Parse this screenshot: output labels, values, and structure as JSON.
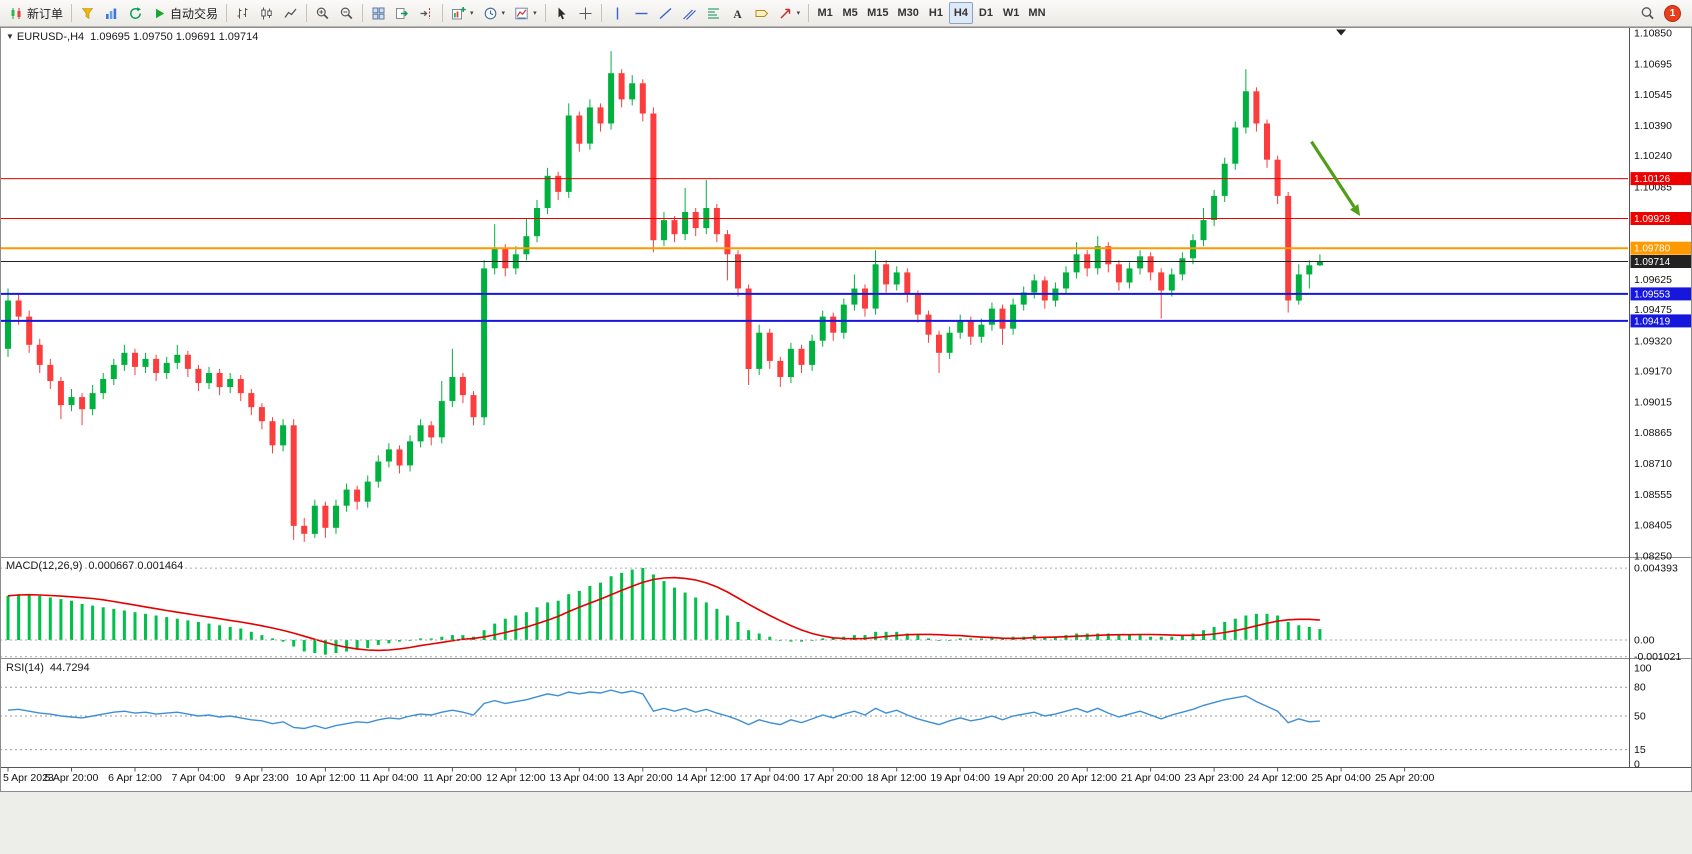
{
  "toolbar": {
    "new_order_label": "新订单",
    "auto_trading_label": "自动交易",
    "timeframes": [
      "M1",
      "M5",
      "M15",
      "M30",
      "H1",
      "H4",
      "D1",
      "W1",
      "MN"
    ],
    "active_timeframe": "H4",
    "notification_count": "1"
  },
  "header": {
    "symbol_period": "EURUSD-,H4",
    "ohlc_text": "1.09695 1.09750 1.09691 1.09714"
  },
  "indicators": {
    "macd_name": "MACD(12,26,9)",
    "macd_values": "0.000667 0.001464",
    "rsi_name": "RSI(14)",
    "rsi_value": "44.7294"
  },
  "colors": {
    "bull": "#00b140",
    "bear": "#fb3d3d",
    "macd_bar": "#00c24a",
    "macd_signal": "#e50000",
    "rsi_line": "#3e8fd8",
    "arrow": "#4f9f18",
    "axis_text": "#111111",
    "separator": "#8c8c8c"
  },
  "chart_data": {
    "type": "candlestick",
    "symbol": "EURUSD-",
    "period": "H4",
    "current_bar": {
      "open": "1.09695",
      "high": "1.09750",
      "low": "1.09691",
      "close": "1.09714"
    },
    "price_axis": {
      "min": 1.0825,
      "max": 1.1085,
      "tick_labels": [
        "1.10850",
        "1.10695",
        "1.10545",
        "1.10390",
        "1.10240",
        "1.10085",
        "1.09935",
        "1.09780",
        "1.09625",
        "1.09475",
        "1.09320",
        "1.09170",
        "1.09015",
        "1.08865",
        "1.08710",
        "1.08555",
        "1.08405",
        "1.08250"
      ]
    },
    "time_labels": [
      "5 Apr 2023",
      "5 Apr 20:00",
      "6 Apr 12:00",
      "7 Apr 04:00",
      "9 Apr 23:00",
      "10 Apr 12:00",
      "11 Apr 04:00",
      "11 Apr 20:00",
      "12 Apr 12:00",
      "13 Apr 04:00",
      "13 Apr 20:00",
      "14 Apr 12:00",
      "17 Apr 04:00",
      "17 Apr 20:00",
      "18 Apr 12:00",
      "19 Apr 04:00",
      "19 Apr 20:00",
      "20 Apr 12:00",
      "21 Apr 04:00",
      "23 Apr 23:00",
      "24 Apr 12:00",
      "25 Apr 04:00",
      "25 Apr 20:00"
    ],
    "price_lines": [
      {
        "price": 1.10126,
        "label": "1.10126",
        "color": "#ee0000",
        "width": 1
      },
      {
        "price": 1.09928,
        "label": "1.09928",
        "color": "#ee0000",
        "width": 1
      },
      {
        "price": 1.0978,
        "label": "1.09780",
        "color": "#ff9900",
        "width": 2
      },
      {
        "price": 1.09714,
        "label": "1.09714",
        "color": "#222222",
        "width": 1,
        "bid": true
      },
      {
        "price": 1.09553,
        "label": "1.09553",
        "color": "#1616dd",
        "width": 2
      },
      {
        "price": 1.09419,
        "label": "1.09419",
        "color": "#1616dd",
        "width": 2
      }
    ],
    "arrow": {
      "from_slot": 123.2,
      "from_price": 1.1031,
      "to_slot": 127.8,
      "to_price": 1.0994
    },
    "shift_marker_slot": 126,
    "candles": [
      [
        1.0928,
        1.0958,
        1.0924,
        1.0952
      ],
      [
        1.0952,
        1.0955,
        1.094,
        1.0944
      ],
      [
        1.0944,
        1.0947,
        1.0926,
        1.093
      ],
      [
        1.093,
        1.0933,
        1.0916,
        1.092
      ],
      [
        1.092,
        1.0923,
        1.0908,
        1.0912
      ],
      [
        1.0912,
        1.0914,
        1.0893,
        1.09
      ],
      [
        1.09,
        1.0908,
        1.0897,
        1.0904
      ],
      [
        1.0904,
        1.0906,
        1.089,
        1.0898
      ],
      [
        1.0898,
        1.091,
        1.0895,
        1.0906
      ],
      [
        1.0906,
        1.0916,
        1.0903,
        1.0913
      ],
      [
        1.0913,
        1.0923,
        1.091,
        1.092
      ],
      [
        1.092,
        1.093,
        1.0917,
        1.0926
      ],
      [
        1.0926,
        1.0928,
        1.0915,
        1.0919
      ],
      [
        1.0919,
        1.0926,
        1.0916,
        1.0923
      ],
      [
        1.0923,
        1.0925,
        1.0912,
        1.0916
      ],
      [
        1.0916,
        1.0924,
        1.0913,
        1.0921
      ],
      [
        1.0921,
        1.093,
        1.0918,
        1.0925
      ],
      [
        1.0925,
        1.0927,
        1.0914,
        1.0918
      ],
      [
        1.0918,
        1.092,
        1.0907,
        1.0911
      ],
      [
        1.0911,
        1.0919,
        1.0908,
        1.0916
      ],
      [
        1.0916,
        1.0918,
        1.0905,
        1.0909
      ],
      [
        1.0909,
        1.0916,
        1.0906,
        1.0913
      ],
      [
        1.0913,
        1.0915,
        1.0902,
        1.0906
      ],
      [
        1.0906,
        1.0908,
        1.0895,
        1.0899
      ],
      [
        1.0899,
        1.0901,
        1.0888,
        1.0892
      ],
      [
        1.0892,
        1.0894,
        1.0876,
        1.088
      ],
      [
        1.088,
        1.0893,
        1.0877,
        1.089
      ],
      [
        1.089,
        1.0893,
        1.0833,
        1.084
      ],
      [
        1.084,
        1.0844,
        1.0832,
        1.0836
      ],
      [
        1.0836,
        1.0853,
        1.0834,
        1.085
      ],
      [
        1.085,
        1.0852,
        1.0834,
        1.0839
      ],
      [
        1.0839,
        1.0853,
        1.0836,
        1.085
      ],
      [
        1.085,
        1.0861,
        1.0847,
        1.0858
      ],
      [
        1.0858,
        1.086,
        1.0848,
        1.0852
      ],
      [
        1.0852,
        1.0865,
        1.0849,
        1.0862
      ],
      [
        1.0862,
        1.0875,
        1.0859,
        1.0872
      ],
      [
        1.0872,
        1.0881,
        1.0869,
        1.0878
      ],
      [
        1.0878,
        1.088,
        1.0866,
        1.087
      ],
      [
        1.087,
        1.0885,
        1.0867,
        1.0882
      ],
      [
        1.0882,
        1.0893,
        1.0879,
        1.089
      ],
      [
        1.089,
        1.0892,
        1.088,
        1.0884
      ],
      [
        1.0884,
        1.0912,
        1.0881,
        1.0902
      ],
      [
        1.0902,
        1.0928,
        1.0899,
        1.0914
      ],
      [
        1.0914,
        1.0916,
        1.0901,
        1.0905
      ],
      [
        1.0905,
        1.0907,
        1.089,
        1.0894
      ],
      [
        1.0894,
        1.0972,
        1.089,
        1.0968
      ],
      [
        1.0968,
        1.099,
        1.0965,
        1.0978
      ],
      [
        1.0978,
        1.098,
        1.0964,
        1.0968
      ],
      [
        1.0968,
        1.0979,
        1.0965,
        1.0975
      ],
      [
        1.0975,
        1.0993,
        1.0972,
        1.0984
      ],
      [
        1.0984,
        1.1002,
        1.0981,
        1.0998
      ],
      [
        1.0998,
        1.1018,
        1.0995,
        1.1014
      ],
      [
        1.1014,
        1.1016,
        1.1002,
        1.1006
      ],
      [
        1.1006,
        1.105,
        1.1003,
        1.1044
      ],
      [
        1.1044,
        1.1046,
        1.1026,
        1.103
      ],
      [
        1.103,
        1.1052,
        1.1027,
        1.1048
      ],
      [
        1.1048,
        1.105,
        1.1036,
        1.104
      ],
      [
        1.104,
        1.1076,
        1.1037,
        1.1065
      ],
      [
        1.1065,
        1.1067,
        1.1048,
        1.1052
      ],
      [
        1.1052,
        1.1064,
        1.1049,
        1.106
      ],
      [
        1.106,
        1.1062,
        1.1041,
        1.1045
      ],
      [
        1.1045,
        1.1048,
        1.0976,
        1.0982
      ],
      [
        1.0982,
        1.0996,
        1.0979,
        1.0992
      ],
      [
        1.0992,
        1.0994,
        1.0981,
        1.0985
      ],
      [
        1.0985,
        1.1008,
        1.0982,
        1.0996
      ],
      [
        1.0996,
        1.0998,
        1.0984,
        1.0988
      ],
      [
        1.0988,
        1.1012,
        1.0985,
        1.0998
      ],
      [
        1.0998,
        1.1,
        1.0981,
        1.0985
      ],
      [
        1.0985,
        1.0987,
        1.0962,
        1.0975
      ],
      [
        1.0975,
        1.0977,
        1.0954,
        1.0958
      ],
      [
        1.0958,
        1.096,
        1.091,
        1.0918
      ],
      [
        1.0918,
        1.094,
        1.0915,
        1.0936
      ],
      [
        1.0936,
        1.0938,
        1.0918,
        1.0922
      ],
      [
        1.0922,
        1.0924,
        1.0909,
        1.0914
      ],
      [
        1.0914,
        1.0931,
        1.0911,
        1.0928
      ],
      [
        1.0928,
        1.093,
        1.0916,
        1.092
      ],
      [
        1.092,
        1.0935,
        1.0917,
        1.0932
      ],
      [
        1.0932,
        1.0947,
        1.0929,
        1.0944
      ],
      [
        1.0944,
        1.0946,
        1.0932,
        1.0936
      ],
      [
        1.0936,
        1.0953,
        1.0933,
        1.095
      ],
      [
        1.095,
        1.0965,
        1.0947,
        1.0958
      ],
      [
        1.0958,
        1.096,
        1.0944,
        1.0948
      ],
      [
        1.0948,
        1.0977,
        1.0945,
        1.097
      ],
      [
        1.097,
        1.0972,
        1.0956,
        1.096
      ],
      [
        1.096,
        1.0969,
        1.0957,
        1.0966
      ],
      [
        1.0966,
        1.0968,
        1.0951,
        1.0955
      ],
      [
        1.0955,
        1.0957,
        1.0941,
        1.0945
      ],
      [
        1.0945,
        1.0947,
        1.0931,
        1.0935
      ],
      [
        1.0935,
        1.0937,
        1.0916,
        1.0926
      ],
      [
        1.0926,
        1.0939,
        1.0923,
        1.0936
      ],
      [
        1.0936,
        1.0945,
        1.0933,
        1.0942
      ],
      [
        1.0942,
        1.0944,
        1.093,
        1.0934
      ],
      [
        1.0934,
        1.0943,
        1.0931,
        1.094
      ],
      [
        1.094,
        1.0951,
        1.0937,
        1.0948
      ],
      [
        1.0948,
        1.095,
        1.093,
        1.0938
      ],
      [
        1.0938,
        1.0953,
        1.0935,
        1.095
      ],
      [
        1.095,
        1.0959,
        1.0947,
        1.0956
      ],
      [
        1.0956,
        1.0965,
        1.0953,
        1.0962
      ],
      [
        1.0962,
        1.0964,
        1.0948,
        1.0952
      ],
      [
        1.0952,
        1.0961,
        1.0949,
        1.0958
      ],
      [
        1.0958,
        1.0969,
        1.0955,
        1.0966
      ],
      [
        1.0966,
        1.0981,
        1.0963,
        1.0975
      ],
      [
        1.0975,
        1.0977,
        1.0964,
        1.0968
      ],
      [
        1.0968,
        1.0984,
        1.0965,
        1.0979
      ],
      [
        1.0979,
        1.0981,
        1.0966,
        1.097
      ],
      [
        1.097,
        1.0972,
        1.0957,
        1.0961
      ],
      [
        1.0961,
        1.0971,
        1.0958,
        1.0968
      ],
      [
        1.0968,
        1.0977,
        1.0965,
        1.0974
      ],
      [
        1.0974,
        1.0976,
        1.0962,
        1.0966
      ],
      [
        1.0966,
        1.0968,
        1.0943,
        1.0957
      ],
      [
        1.0957,
        1.0968,
        1.0954,
        1.0965
      ],
      [
        1.0965,
        1.0976,
        1.0962,
        1.0973
      ],
      [
        1.0973,
        1.0985,
        1.097,
        1.0982
      ],
      [
        1.0982,
        1.0998,
        1.0979,
        1.0992
      ],
      [
        1.0992,
        1.1007,
        1.0989,
        1.1004
      ],
      [
        1.1004,
        1.1023,
        1.1001,
        1.102
      ],
      [
        1.102,
        1.1041,
        1.1017,
        1.1038
      ],
      [
        1.1038,
        1.1067,
        1.1035,
        1.1056
      ],
      [
        1.1056,
        1.1058,
        1.1036,
        1.104
      ],
      [
        1.104,
        1.1042,
        1.1018,
        1.1022
      ],
      [
        1.1022,
        1.1024,
        1.1,
        1.1004
      ],
      [
        1.1004,
        1.1006,
        1.0946,
        1.0952
      ],
      [
        1.0952,
        1.097,
        1.095,
        1.0965
      ],
      [
        1.0965,
        1.0972,
        1.0958,
        1.09695
      ],
      [
        1.09695,
        1.0975,
        1.09691,
        1.09714
      ]
    ],
    "macd": {
      "name": "MACD(12,26,9)",
      "values_text": "0.000667 0.001464",
      "signal_period": 9,
      "axis": [
        {
          "v": 0.004393,
          "label": "0.004393"
        },
        {
          "v": 0,
          "label": "0.00"
        },
        {
          "v": -0.001021,
          "label": "-0.001021"
        }
      ],
      "bars": [
        0.0027,
        0.0028,
        0.0028,
        0.0027,
        0.0026,
        0.0025,
        0.0024,
        0.0022,
        0.0021,
        0.002,
        0.0019,
        0.0018,
        0.0017,
        0.0016,
        0.0015,
        0.0014,
        0.0013,
        0.0012,
        0.0011,
        0.001,
        0.0009,
        0.0008,
        0.0007,
        0.0005,
        0.0003,
        0.0001,
        -0.0001,
        -0.0004,
        -0.0007,
        -0.0008,
        -0.0009,
        -0.0008,
        -0.0007,
        -0.0006,
        -0.0005,
        -0.0003,
        -0.0002,
        -0.0001,
        0.0,
        0.0001,
        0.0001,
        0.0002,
        0.0003,
        0.0003,
        0.0002,
        0.0006,
        0.001,
        0.0013,
        0.0015,
        0.0017,
        0.002,
        0.0023,
        0.0024,
        0.0028,
        0.003,
        0.0033,
        0.0035,
        0.0039,
        0.0041,
        0.0043,
        0.0044,
        0.004,
        0.0036,
        0.0032,
        0.0029,
        0.0026,
        0.0023,
        0.0019,
        0.0015,
        0.0011,
        0.0006,
        0.0004,
        0.0002,
        0.0,
        -0.0001,
        -0.0001,
        0.0,
        0.0001,
        0.0001,
        0.0002,
        0.0003,
        0.0003,
        0.0005,
        0.0005,
        0.0005,
        0.0004,
        0.0003,
        0.0001,
        0.0,
        0.0,
        0.0001,
        0.0001,
        0.0001,
        0.0002,
        0.0001,
        0.0002,
        0.0002,
        0.0003,
        0.0002,
        0.0002,
        0.0003,
        0.0004,
        0.0004,
        0.0004,
        0.0004,
        0.0003,
        0.0003,
        0.0003,
        0.0002,
        0.0002,
        0.0002,
        0.0003,
        0.0004,
        0.0006,
        0.0008,
        0.0011,
        0.0013,
        0.0015,
        0.0016,
        0.0016,
        0.0015,
        0.0011,
        0.0009,
        0.0008,
        0.000667
      ]
    },
    "rsi": {
      "name": "RSI(14)",
      "value_text": "44.7294",
      "levels": [
        80,
        50,
        15
      ],
      "axis": [
        {
          "v": 100,
          "label": "100"
        },
        {
          "v": 80,
          "label": "80"
        },
        {
          "v": 50,
          "label": "50"
        },
        {
          "v": 15,
          "label": "15"
        },
        {
          "v": 0,
          "label": "0"
        }
      ],
      "values": [
        56,
        57,
        55,
        53,
        52,
        50,
        49,
        48,
        50,
        52,
        54,
        55,
        53,
        54,
        52,
        53,
        54,
        52,
        50,
        51,
        49,
        50,
        48,
        46,
        45,
        42,
        44,
        38,
        37,
        40,
        37,
        40,
        42,
        44,
        43,
        46,
        48,
        47,
        50,
        52,
        51,
        54,
        56,
        54,
        51,
        63,
        66,
        63,
        65,
        67,
        70,
        73,
        71,
        75,
        73,
        75,
        74,
        77,
        74,
        76,
        73,
        55,
        58,
        55,
        58,
        54,
        57,
        53,
        50,
        46,
        41,
        46,
        43,
        41,
        46,
        43,
        47,
        51,
        48,
        52,
        55,
        51,
        58,
        53,
        56,
        51,
        47,
        44,
        41,
        45,
        48,
        45,
        47,
        50,
        46,
        50,
        52,
        54,
        50,
        52,
        55,
        58,
        54,
        58,
        53,
        49,
        52,
        55,
        51,
        47,
        51,
        54,
        57,
        61,
        64,
        67,
        69,
        71,
        65,
        60,
        55,
        43,
        47,
        44,
        44.73
      ]
    }
  }
}
